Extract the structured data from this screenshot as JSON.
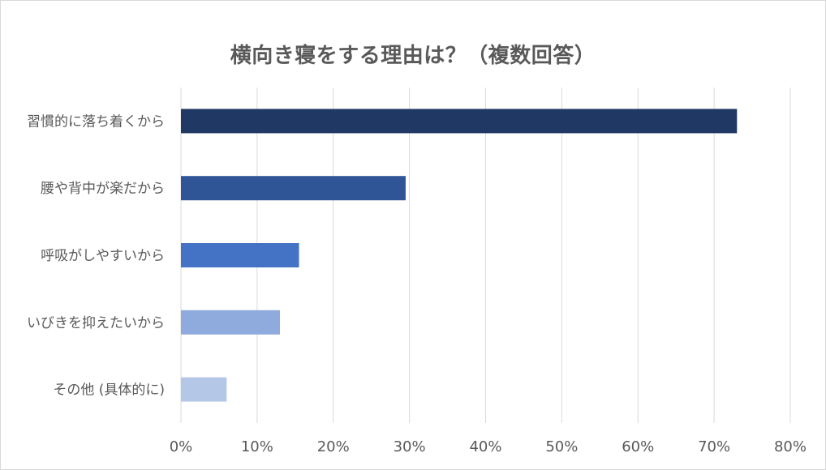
{
  "chart_data": {
    "type": "bar",
    "orientation": "horizontal",
    "title": "横向き寝をする理由は？（複数回答）",
    "categories": [
      "習慣的に落ち着くから",
      "腰や背中が楽だから",
      "呼吸がしやすいから",
      "いびきを抑えたいから",
      "その他 (具体的に)"
    ],
    "values": [
      73,
      29.5,
      15.5,
      13,
      6
    ],
    "unit": "%",
    "colors": [
      "#203864",
      "#2f5597",
      "#4472c4",
      "#8faadc",
      "#b4c7e7"
    ],
    "xlim": [
      0,
      80
    ],
    "xticks": [
      "0%",
      "10%",
      "20%",
      "30%",
      "40%",
      "50%",
      "60%",
      "70%",
      "80%"
    ],
    "grid": true,
    "legend": "none"
  }
}
